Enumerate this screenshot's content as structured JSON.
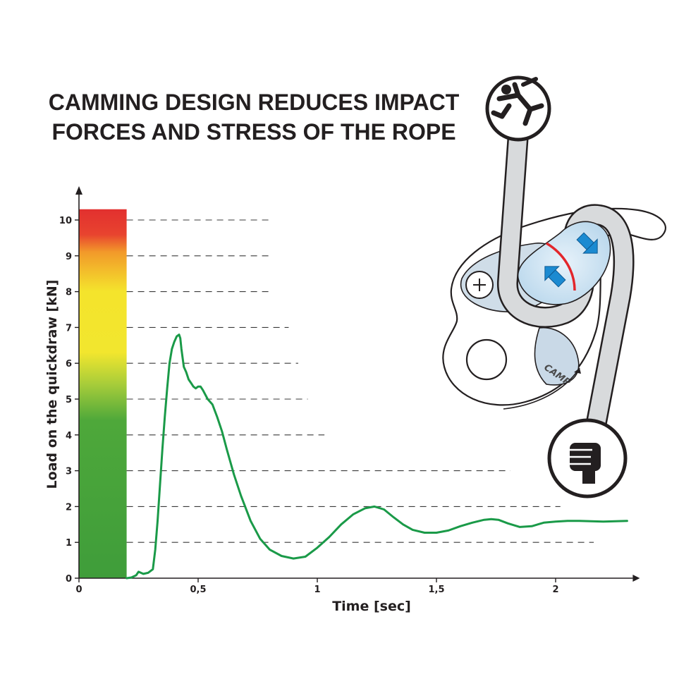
{
  "title_line1": "CAMMING DESIGN REDUCES IMPACT",
  "title_line2": "FORCES AND STRESS OF THE ROPE",
  "logo_text": "CAMP",
  "chart_data": {
    "type": "line",
    "xlabel": "Time [sec]",
    "ylabel": "Load on the quickdraw [kN]",
    "x_ticks": [
      "0",
      "0,5",
      "1",
      "1,5",
      "2"
    ],
    "x_tick_values": [
      0,
      0.5,
      1,
      1.5,
      2
    ],
    "y_ticks": [
      "0",
      "1",
      "2",
      "3",
      "4",
      "5",
      "6",
      "7",
      "8",
      "9",
      "10"
    ],
    "y_tick_values": [
      0,
      1,
      2,
      3,
      4,
      5,
      6,
      7,
      8,
      9,
      10
    ],
    "xlim": [
      0,
      2.3
    ],
    "ylim": [
      0,
      10.3
    ],
    "gridlines": {
      "style": "dashed",
      "levels": [
        1,
        2,
        3,
        4,
        5,
        6,
        7,
        8,
        9,
        10
      ],
      "extent_x": [
        2.16,
        2.02,
        1.81,
        1.03,
        0.96,
        0.92,
        0.88,
        0.81,
        0.81,
        0.81
      ]
    },
    "color_scale_bar": {
      "x_range": [
        0,
        0.2
      ],
      "y_range": [
        0,
        10.3
      ],
      "stops": [
        {
          "y": 0,
          "color": "#3f9d3a"
        },
        {
          "y": 4.4,
          "color": "#4ea83a"
        },
        {
          "y": 5.4,
          "color": "#a6cc3a"
        },
        {
          "y": 6.3,
          "color": "#f2e62e"
        },
        {
          "y": 8.0,
          "color": "#f4e42c"
        },
        {
          "y": 9.1,
          "color": "#f29a2a"
        },
        {
          "y": 9.6,
          "color": "#e8432f"
        },
        {
          "y": 10.3,
          "color": "#e2302f"
        }
      ]
    },
    "series": [
      {
        "color": "#1a9a48",
        "x": [
          0.2,
          0.22,
          0.24,
          0.25,
          0.27,
          0.29,
          0.31,
          0.32,
          0.33,
          0.34,
          0.35,
          0.36,
          0.37,
          0.38,
          0.39,
          0.4,
          0.41,
          0.42,
          0.425,
          0.43,
          0.44,
          0.45,
          0.46,
          0.47,
          0.48,
          0.49,
          0.5,
          0.51,
          0.52,
          0.54,
          0.56,
          0.58,
          0.6,
          0.62,
          0.65,
          0.68,
          0.72,
          0.76,
          0.8,
          0.85,
          0.9,
          0.95,
          1.0,
          1.05,
          1.1,
          1.15,
          1.2,
          1.24,
          1.28,
          1.32,
          1.36,
          1.4,
          1.45,
          1.5,
          1.55,
          1.6,
          1.65,
          1.7,
          1.73,
          1.76,
          1.8,
          1.85,
          1.9,
          1.95,
          2.0,
          2.05,
          2.1,
          2.2,
          2.3
        ],
        "values": [
          0,
          0.02,
          0.08,
          0.18,
          0.12,
          0.15,
          0.25,
          0.8,
          1.6,
          2.6,
          3.6,
          4.5,
          5.3,
          6.0,
          6.4,
          6.6,
          6.75,
          6.8,
          6.7,
          6.4,
          5.9,
          5.75,
          5.55,
          5.45,
          5.35,
          5.3,
          5.35,
          5.35,
          5.25,
          5.0,
          4.85,
          4.5,
          4.1,
          3.6,
          2.9,
          2.3,
          1.6,
          1.1,
          0.8,
          0.62,
          0.55,
          0.6,
          0.85,
          1.15,
          1.5,
          1.78,
          1.95,
          2.0,
          1.92,
          1.7,
          1.5,
          1.35,
          1.27,
          1.27,
          1.33,
          1.45,
          1.55,
          1.63,
          1.65,
          1.63,
          1.53,
          1.43,
          1.45,
          1.55,
          1.58,
          1.6,
          1.6,
          1.58,
          1.6
        ]
      }
    ]
  },
  "icons": {
    "top_circle": "falling-climber-icon",
    "bottom_circle": "fist-grip-icon",
    "device": "assisted-belay-device-icon"
  }
}
